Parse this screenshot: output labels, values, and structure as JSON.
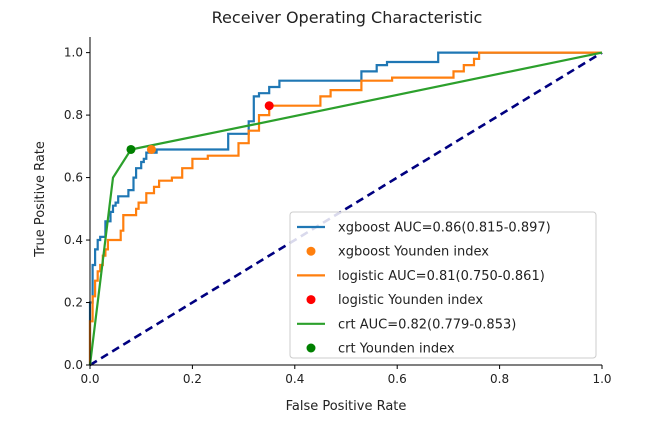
{
  "chart_data": {
    "type": "line",
    "title": "Receiver Operating Characteristic",
    "xlabel": "False Positive Rate",
    "ylabel": "True Positive Rate",
    "xlim": [
      0,
      1.0
    ],
    "ylim": [
      0,
      1.05
    ],
    "x_ticks": [
      "0.0",
      "0.2",
      "0.4",
      "0.6",
      "0.8",
      "1.0"
    ],
    "y_ticks": [
      "0.0",
      "0.2",
      "0.4",
      "0.6",
      "0.8",
      "1.0"
    ],
    "grid": false,
    "legend_position": "lower-right",
    "diagonal": {
      "x": [
        0,
        1
      ],
      "y": [
        0,
        1
      ],
      "color": "#000080",
      "style": "dashed"
    },
    "series": [
      {
        "name": "xgboost AUC=0.86(0.815-0.897)",
        "color": "#1f77b4",
        "x": [
          0.0,
          0.0,
          0.005,
          0.005,
          0.01,
          0.01,
          0.015,
          0.015,
          0.02,
          0.02,
          0.03,
          0.03,
          0.04,
          0.04,
          0.045,
          0.045,
          0.05,
          0.05,
          0.055,
          0.055,
          0.06,
          0.06,
          0.075,
          0.075,
          0.085,
          0.085,
          0.09,
          0.09,
          0.1,
          0.1,
          0.105,
          0.105,
          0.11,
          0.11,
          0.13,
          0.13,
          0.27,
          0.27,
          0.31,
          0.31,
          0.32,
          0.32,
          0.33,
          0.33,
          0.35,
          0.35,
          0.37,
          0.37,
          0.39,
          0.39,
          0.53,
          0.53,
          0.56,
          0.56,
          0.58,
          0.58,
          0.68,
          0.68,
          1.0
        ],
        "y": [
          0.0,
          0.2,
          0.2,
          0.32,
          0.32,
          0.37,
          0.37,
          0.4,
          0.4,
          0.41,
          0.41,
          0.46,
          0.46,
          0.49,
          0.49,
          0.51,
          0.51,
          0.52,
          0.52,
          0.54,
          0.54,
          0.54,
          0.54,
          0.56,
          0.56,
          0.6,
          0.6,
          0.63,
          0.63,
          0.65,
          0.65,
          0.66,
          0.66,
          0.68,
          0.68,
          0.69,
          0.69,
          0.74,
          0.74,
          0.78,
          0.78,
          0.86,
          0.86,
          0.87,
          0.87,
          0.89,
          0.89,
          0.91,
          0.91,
          0.91,
          0.91,
          0.94,
          0.94,
          0.96,
          0.96,
          0.97,
          0.97,
          1.0,
          1.0
        ]
      },
      {
        "name": "logistic AUC=0.81(0.750-0.861)",
        "color": "#ff7f0e",
        "x": [
          0.0,
          0.0,
          0.005,
          0.005,
          0.01,
          0.01,
          0.015,
          0.015,
          0.02,
          0.02,
          0.025,
          0.025,
          0.03,
          0.03,
          0.035,
          0.035,
          0.04,
          0.04,
          0.06,
          0.06,
          0.065,
          0.065,
          0.09,
          0.09,
          0.095,
          0.095,
          0.11,
          0.11,
          0.125,
          0.125,
          0.135,
          0.135,
          0.16,
          0.16,
          0.18,
          0.18,
          0.2,
          0.2,
          0.23,
          0.23,
          0.29,
          0.29,
          0.31,
          0.31,
          0.33,
          0.33,
          0.35,
          0.35,
          0.45,
          0.45,
          0.47,
          0.47,
          0.53,
          0.53,
          0.59,
          0.59,
          0.71,
          0.71,
          0.73,
          0.73,
          0.75,
          0.75,
          0.76,
          0.76,
          1.0
        ],
        "y": [
          0.0,
          0.14,
          0.14,
          0.22,
          0.22,
          0.27,
          0.27,
          0.3,
          0.3,
          0.32,
          0.32,
          0.35,
          0.35,
          0.37,
          0.37,
          0.4,
          0.4,
          0.4,
          0.4,
          0.43,
          0.43,
          0.48,
          0.48,
          0.5,
          0.5,
          0.52,
          0.52,
          0.55,
          0.55,
          0.57,
          0.57,
          0.59,
          0.59,
          0.6,
          0.6,
          0.63,
          0.63,
          0.66,
          0.66,
          0.67,
          0.67,
          0.71,
          0.71,
          0.75,
          0.75,
          0.8,
          0.8,
          0.83,
          0.83,
          0.86,
          0.86,
          0.88,
          0.88,
          0.91,
          0.91,
          0.92,
          0.92,
          0.94,
          0.94,
          0.96,
          0.96,
          0.98,
          0.98,
          1.0,
          1.0
        ]
      },
      {
        "name": "crt AUC=0.82(0.779-0.853)",
        "color": "#2ca02c",
        "x": [
          0.0,
          0.045,
          0.08,
          0.32,
          1.0
        ],
        "y": [
          0.0,
          0.6,
          0.69,
          0.77,
          1.0
        ]
      }
    ],
    "youden_points": [
      {
        "name": "xgboost Younden index",
        "x": 0.12,
        "y": 0.69,
        "color": "#ff7f0e"
      },
      {
        "name": "logistic Younden index",
        "x": 0.35,
        "y": 0.83,
        "color": "#ff0000"
      },
      {
        "name": "crt Younden index",
        "x": 0.08,
        "y": 0.69,
        "color": "#008000"
      }
    ],
    "legend": [
      {
        "label": "xgboost AUC=0.86(0.815-0.897)",
        "kind": "line",
        "color": "#1f77b4"
      },
      {
        "label": "xgboost Younden index",
        "kind": "marker",
        "color": "#ff7f0e"
      },
      {
        "label": "logistic AUC=0.81(0.750-0.861)",
        "kind": "line",
        "color": "#ff7f0e"
      },
      {
        "label": "logistic Younden index",
        "kind": "marker",
        "color": "#ff0000"
      },
      {
        "label": "crt AUC=0.82(0.779-0.853)",
        "kind": "line",
        "color": "#2ca02c"
      },
      {
        "label": "crt Younden index",
        "kind": "marker",
        "color": "#008000"
      }
    ]
  }
}
